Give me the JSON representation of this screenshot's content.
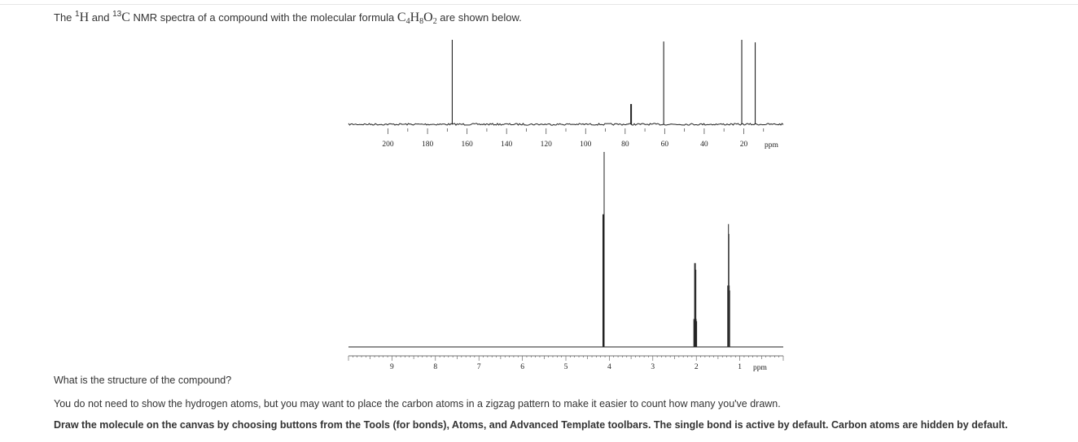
{
  "prompt": {
    "lead": "The ",
    "h_mass": "1",
    "h_symbol": "H",
    "and": " and ",
    "c_mass": "13",
    "c_symbol": "C",
    "middle": " NMR spectra of a compound with the molecular formula ",
    "formula_c": "C",
    "formula_c_count": "4",
    "formula_h": "H",
    "formula_h_count": "8",
    "formula_o": "O",
    "formula_o_count": "2",
    "tail": " are shown below."
  },
  "question": "What is the structure of the compound?",
  "hint": "You do not need to show the hydrogen atoms, but you may want to place the carbon atoms in a zigzag pattern to make it easier to count how many you've drawn.",
  "instructions": "Draw the molecule on the canvas by choosing buttons from the Tools (for bonds), Atoms, and Advanced Template toolbars. The single bond is active by default. Carbon atoms are hidden by default.",
  "chart_data": [
    {
      "type": "line",
      "nucleus": "13C",
      "xlabel": "ppm",
      "x_reversed": true,
      "xlim": [
        220,
        0
      ],
      "tick_labels": [
        200,
        180,
        160,
        140,
        120,
        100,
        80,
        60,
        40,
        20
      ],
      "peaks": [
        {
          "ppm": 167.5,
          "intensity": 1.0
        },
        {
          "ppm": 77.0,
          "intensity": 0.24
        },
        {
          "ppm": 60.5,
          "intensity": 0.98
        },
        {
          "ppm": 21.0,
          "intensity": 1.0
        },
        {
          "ppm": 14.2,
          "intensity": 0.97
        }
      ]
    },
    {
      "type": "line",
      "nucleus": "1H",
      "xlabel": "ppm",
      "x_reversed": true,
      "xlim": [
        10,
        0
      ],
      "tick_labels": [
        9,
        8,
        7,
        6,
        5,
        4,
        3,
        2,
        1
      ],
      "peaks": [
        {
          "ppm": 4.12,
          "intensity": 1.0,
          "multiplicity": "singlet"
        },
        {
          "ppm": 2.03,
          "intensity": 0.43,
          "multiplicity": "quartet"
        },
        {
          "ppm": 1.26,
          "intensity": 0.63,
          "multiplicity": "triplet"
        }
      ]
    }
  ]
}
